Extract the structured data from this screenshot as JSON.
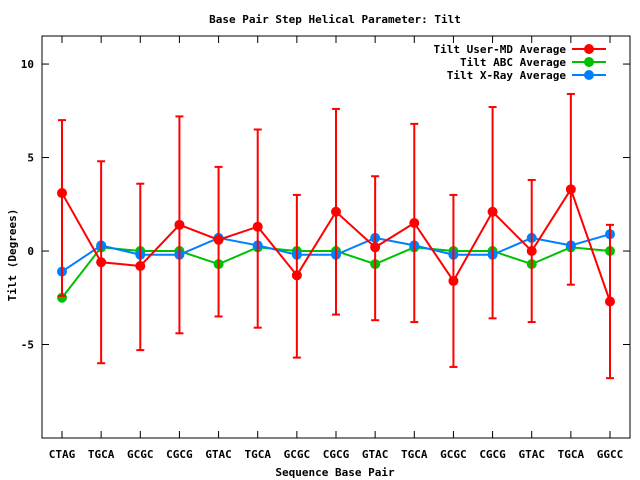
{
  "chart_data": {
    "type": "line",
    "title": "Base Pair Step Helical Parameter: Tilt",
    "xlabel": "Sequence Base Pair",
    "ylabel": "Tilt (Degrees)",
    "ylim": [
      -10,
      11.5
    ],
    "yticks": [
      -5,
      0,
      5,
      10
    ],
    "yticklabels": [
      "-5",
      "0",
      "5",
      "10"
    ],
    "categories": [
      "CTAG",
      "TGCA",
      "GCGC",
      "CGCG",
      "GTAC",
      "TGCA",
      "GCGC",
      "CGCG",
      "GTAC",
      "TGCA",
      "GCGC",
      "CGCG",
      "GTAC",
      "TGCA",
      "GGCC"
    ],
    "grid": false,
    "legend_position": "top-right",
    "series": [
      {
        "name": "Tilt User-MD Average",
        "color": "#ff0000",
        "values": [
          3.1,
          -0.6,
          -0.8,
          1.4,
          0.6,
          1.3,
          -1.3,
          2.1,
          0.2,
          1.5,
          -1.6,
          2.1,
          0.0,
          3.3,
          -2.7
        ],
        "err_low": [
          -2.4,
          -6.0,
          -5.3,
          -4.4,
          -3.5,
          -4.1,
          -5.7,
          -3.4,
          -3.7,
          -3.8,
          -6.2,
          -3.6,
          -3.8,
          -1.8,
          -6.8
        ],
        "err_high": [
          7.0,
          4.8,
          3.6,
          7.2,
          4.5,
          6.5,
          3.0,
          7.6,
          4.0,
          6.8,
          3.0,
          7.7,
          3.8,
          8.4,
          1.4
        ]
      },
      {
        "name": "Tilt ABC Average",
        "color": "#00c000",
        "values": [
          -2.5,
          0.2,
          0.0,
          0.0,
          -0.7,
          0.2,
          0.0,
          0.0,
          -0.7,
          0.2,
          0.0,
          0.0,
          -0.7,
          0.2,
          0.0
        ]
      },
      {
        "name": "Tilt X-Ray Average",
        "color": "#0080ff",
        "values": [
          -1.1,
          0.3,
          -0.2,
          -0.2,
          0.7,
          0.3,
          -0.2,
          -0.2,
          0.7,
          0.3,
          -0.2,
          -0.2,
          0.7,
          0.3,
          0.9
        ]
      }
    ]
  }
}
